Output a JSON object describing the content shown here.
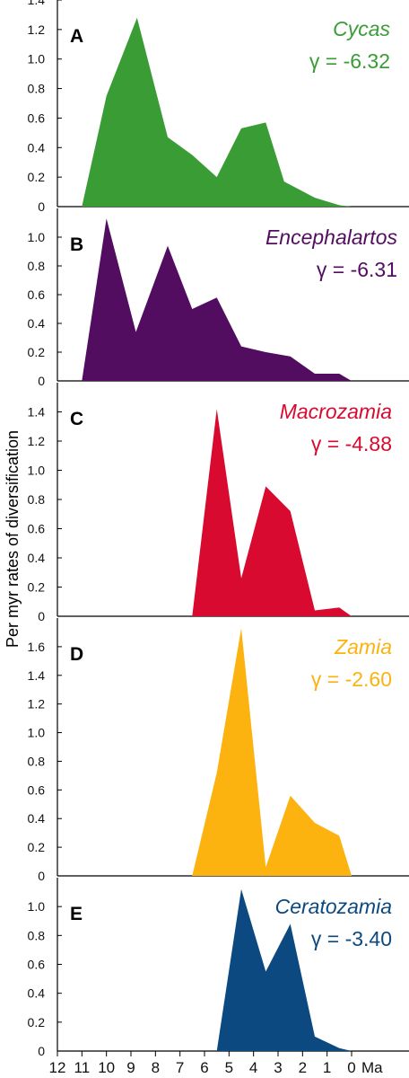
{
  "chart_data": {
    "type": "area",
    "ylabel": "Per myr rates of diversification",
    "x_unit_label": "Ma",
    "x_ticks": [
      "12",
      "11",
      "10",
      "9",
      "8",
      "7",
      "6",
      "5",
      "4",
      "3",
      "2",
      "1",
      "0"
    ],
    "xlim": [
      12,
      0
    ],
    "panels": [
      {
        "letter": "A",
        "genus": "Cycas",
        "gamma": "γ = -6.32",
        "color": "#3a9c35",
        "ylim": [
          0,
          1.4
        ],
        "y_ticks": [
          "0",
          "0.2",
          "0.4",
          "0.6",
          "0.8",
          "1.0",
          "1.2",
          "1.4"
        ],
        "x": [
          11.0,
          10.0,
          8.75,
          7.5,
          6.5,
          5.5,
          4.5,
          3.5,
          2.75,
          1.5,
          0.5,
          0.0
        ],
        "y": [
          0.0,
          0.75,
          1.28,
          0.47,
          0.35,
          0.2,
          0.53,
          0.57,
          0.17,
          0.06,
          0.01,
          0.0
        ]
      },
      {
        "letter": "B",
        "genus": "Encephalartos",
        "gamma": "γ = -6.31",
        "color": "#520d60",
        "ylim": [
          0,
          1.2
        ],
        "y_ticks": [
          "0",
          "0.2",
          "0.4",
          "0.6",
          "0.8",
          "1.0"
        ],
        "x": [
          11.0,
          10.0,
          8.8,
          7.5,
          6.5,
          5.5,
          4.5,
          3.5,
          2.5,
          1.5,
          0.5,
          0.0
        ],
        "y": [
          0.0,
          1.13,
          0.34,
          0.94,
          0.5,
          0.58,
          0.24,
          0.2,
          0.17,
          0.05,
          0.05,
          0.0
        ]
      },
      {
        "letter": "C",
        "genus": "Macrozamia",
        "gamma": "γ = -4.88",
        "color": "#d90a2f",
        "ylim": [
          0,
          1.6
        ],
        "y_ticks": [
          "0",
          "0.2",
          "0.4",
          "0.6",
          "0.8",
          "1.0",
          "1.2",
          "1.4"
        ],
        "x": [
          6.5,
          5.5,
          4.5,
          3.5,
          2.5,
          1.5,
          0.5,
          0.0
        ],
        "y": [
          0.0,
          1.42,
          0.26,
          0.89,
          0.72,
          0.04,
          0.06,
          0.0
        ]
      },
      {
        "letter": "D",
        "genus": "Zamia",
        "gamma": "γ = -2.60",
        "color": "#fcb310",
        "ylim": [
          0,
          1.8
        ],
        "y_ticks": [
          "0",
          "0.2",
          "0.4",
          "0.6",
          "0.8",
          "1.0",
          "1.2",
          "1.4",
          "1.6"
        ],
        "x": [
          6.5,
          5.5,
          4.5,
          3.5,
          2.5,
          1.5,
          0.5,
          0.0
        ],
        "y": [
          0.0,
          0.72,
          1.73,
          0.06,
          0.56,
          0.37,
          0.28,
          0.0
        ]
      },
      {
        "letter": "E",
        "genus": "Ceratozamia",
        "gamma": "γ = -3.40",
        "color": "#0c4981",
        "ylim": [
          0,
          1.2
        ],
        "y_ticks": [
          "0",
          "0.2",
          "0.4",
          "0.6",
          "0.8",
          "1.0"
        ],
        "x": [
          5.5,
          4.5,
          3.5,
          2.5,
          1.5,
          0.5,
          0.0
        ],
        "y": [
          0.0,
          1.12,
          0.55,
          0.88,
          0.1,
          0.02,
          0.0
        ]
      }
    ]
  }
}
